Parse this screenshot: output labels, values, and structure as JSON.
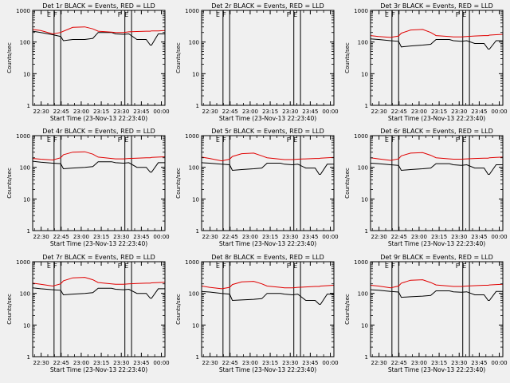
{
  "figure": {
    "background": "#f0f0f0",
    "events_color": "#000000",
    "lld_color": "#e00000"
  },
  "shared": {
    "ylabel": "Counts/sec",
    "xlabel": "Start Time (23-Nov-13 22:23:40)",
    "x_ticks": [
      "22:30",
      "22:45",
      "23:00",
      "23:15",
      "23:30",
      "23:45",
      "00:00"
    ],
    "y_ticks": [
      "1",
      "10",
      "100",
      "1000"
    ],
    "ylim": [
      1,
      1000
    ],
    "y_scale": "log",
    "x_range_minutes_after_22_23_40": [
      0,
      99
    ],
    "markers": [
      {
        "label": "E",
        "time": "22:39:40"
      },
      {
        "label": "F",
        "time": "22:44:40"
      },
      {
        "label": "F",
        "time": "23:32:40"
      },
      {
        "label": "E",
        "time": "23:37:40"
      }
    ]
  },
  "chart_data": [
    {
      "type": "line",
      "title": "Det 1r BLACK = Events, RED = LLD",
      "grid": false,
      "x_minutes": [
        0,
        6,
        15,
        21,
        23,
        30,
        39,
        45,
        49,
        59,
        62,
        68,
        72,
        78,
        85,
        88,
        89,
        94,
        99
      ],
      "series": [
        {
          "values": [
            220,
            200,
            170,
            150,
            110,
            120,
            120,
            130,
            200,
            200,
            180,
            175,
            180,
            120,
            120,
            80,
            80,
            180,
            180
          ]
        },
        {
          "values": [
            250,
            230,
            180,
            200,
            220,
            290,
            300,
            260,
            220,
            205,
            200,
            200,
            210,
            215,
            220,
            220,
            225,
            225,
            230
          ]
        }
      ]
    },
    {
      "type": "line",
      "title": "Det 2r BLACK = Events, RED = LLD",
      "grid": false,
      "x_minutes": [],
      "series": []
    },
    {
      "type": "line",
      "title": "Det 3r BLACK = Events, RED = LLD",
      "grid": false,
      "x_minutes": [
        0,
        6,
        15,
        21,
        23,
        30,
        39,
        45,
        49,
        59,
        62,
        68,
        72,
        78,
        85,
        88,
        89,
        94,
        99
      ],
      "series": [
        {
          "values": [
            125,
            120,
            110,
            105,
            70,
            75,
            80,
            85,
            120,
            120,
            110,
            105,
            110,
            90,
            90,
            60,
            60,
            110,
            110
          ]
        },
        {
          "values": [
            160,
            150,
            140,
            155,
            190,
            240,
            250,
            200,
            160,
            150,
            145,
            145,
            150,
            155,
            160,
            160,
            165,
            170,
            175
          ]
        }
      ]
    },
    {
      "type": "line",
      "title": "Det 4r BLACK = Events, RED = LLD",
      "grid": false,
      "x_minutes": [
        0,
        6,
        15,
        21,
        23,
        30,
        39,
        45,
        49,
        59,
        62,
        68,
        72,
        78,
        85,
        88,
        89,
        94,
        99
      ],
      "series": [
        {
          "values": [
            155,
            145,
            135,
            130,
            90,
            95,
            100,
            105,
            150,
            150,
            140,
            135,
            140,
            100,
            100,
            70,
            70,
            140,
            140
          ]
        },
        {
          "values": [
            190,
            180,
            170,
            200,
            250,
            300,
            310,
            260,
            210,
            190,
            185,
            185,
            190,
            195,
            200,
            200,
            205,
            210,
            215
          ]
        }
      ]
    },
    {
      "type": "line",
      "title": "Det 5r BLACK = Events, RED = LLD",
      "grid": false,
      "x_minutes": [
        0,
        6,
        15,
        21,
        23,
        30,
        39,
        45,
        49,
        59,
        62,
        68,
        72,
        78,
        85,
        88,
        89,
        94,
        99
      ],
      "series": [
        {
          "values": [
            140,
            135,
            125,
            120,
            80,
            85,
            90,
            95,
            135,
            135,
            125,
            120,
            125,
            95,
            95,
            60,
            60,
            125,
            125
          ]
        },
        {
          "values": [
            210,
            190,
            160,
            180,
            220,
            270,
            280,
            230,
            200,
            180,
            175,
            175,
            180,
            185,
            190,
            190,
            195,
            200,
            205
          ]
        }
      ]
    },
    {
      "type": "line",
      "title": "Det 6r BLACK = Events, RED = LLD",
      "grid": false,
      "x_minutes": [
        0,
        6,
        15,
        21,
        23,
        30,
        39,
        45,
        49,
        59,
        62,
        68,
        72,
        78,
        85,
        88,
        89,
        94,
        99
      ],
      "series": [
        {
          "values": [
            135,
            130,
            120,
            115,
            80,
            85,
            90,
            95,
            130,
            130,
            120,
            115,
            120,
            95,
            95,
            60,
            60,
            120,
            120
          ]
        },
        {
          "values": [
            200,
            185,
            165,
            185,
            230,
            280,
            290,
            240,
            200,
            185,
            180,
            180,
            185,
            190,
            195,
            195,
            200,
            205,
            210
          ]
        }
      ]
    },
    {
      "type": "line",
      "title": "Det 7r BLACK = Events, RED = LLD",
      "grid": false,
      "x_minutes": [
        0,
        6,
        15,
        21,
        23,
        30,
        39,
        45,
        49,
        59,
        62,
        68,
        72,
        78,
        85,
        88,
        89,
        94,
        99
      ],
      "series": [
        {
          "values": [
            150,
            140,
            130,
            125,
            90,
            95,
            100,
            105,
            145,
            145,
            135,
            130,
            135,
            100,
            100,
            70,
            70,
            140,
            140
          ]
        },
        {
          "values": [
            210,
            195,
            170,
            200,
            250,
            310,
            320,
            270,
            220,
            200,
            195,
            195,
            200,
            205,
            210,
            210,
            215,
            220,
            225
          ]
        }
      ]
    },
    {
      "type": "line",
      "title": "Det 8r BLACK = Events, RED = LLD",
      "grid": false,
      "x_minutes": [
        0,
        6,
        15,
        21,
        23,
        30,
        39,
        45,
        49,
        59,
        62,
        68,
        72,
        78,
        85,
        88,
        89,
        94,
        99
      ],
      "series": [
        {
          "values": [
            115,
            110,
            100,
            95,
            60,
            62,
            65,
            68,
            100,
            100,
            95,
            90,
            95,
            60,
            60,
            45,
            45,
            95,
            95
          ]
        },
        {
          "values": [
            170,
            155,
            140,
            155,
            190,
            230,
            240,
            200,
            170,
            155,
            150,
            150,
            155,
            160,
            165,
            165,
            170,
            175,
            180
          ]
        }
      ]
    },
    {
      "type": "line",
      "title": "Det 9r BLACK = Events, RED = LLD",
      "grid": false,
      "x_minutes": [
        0,
        6,
        15,
        21,
        23,
        30,
        39,
        45,
        49,
        59,
        62,
        68,
        72,
        78,
        85,
        88,
        89,
        94,
        99
      ],
      "series": [
        {
          "values": [
            130,
            125,
            115,
            110,
            75,
            78,
            82,
            86,
            120,
            120,
            112,
            108,
            112,
            90,
            90,
            60,
            60,
            115,
            115
          ]
        },
        {
          "values": [
            180,
            170,
            150,
            170,
            210,
            260,
            270,
            220,
            185,
            170,
            165,
            165,
            170,
            175,
            180,
            180,
            185,
            190,
            195
          ]
        }
      ]
    }
  ]
}
